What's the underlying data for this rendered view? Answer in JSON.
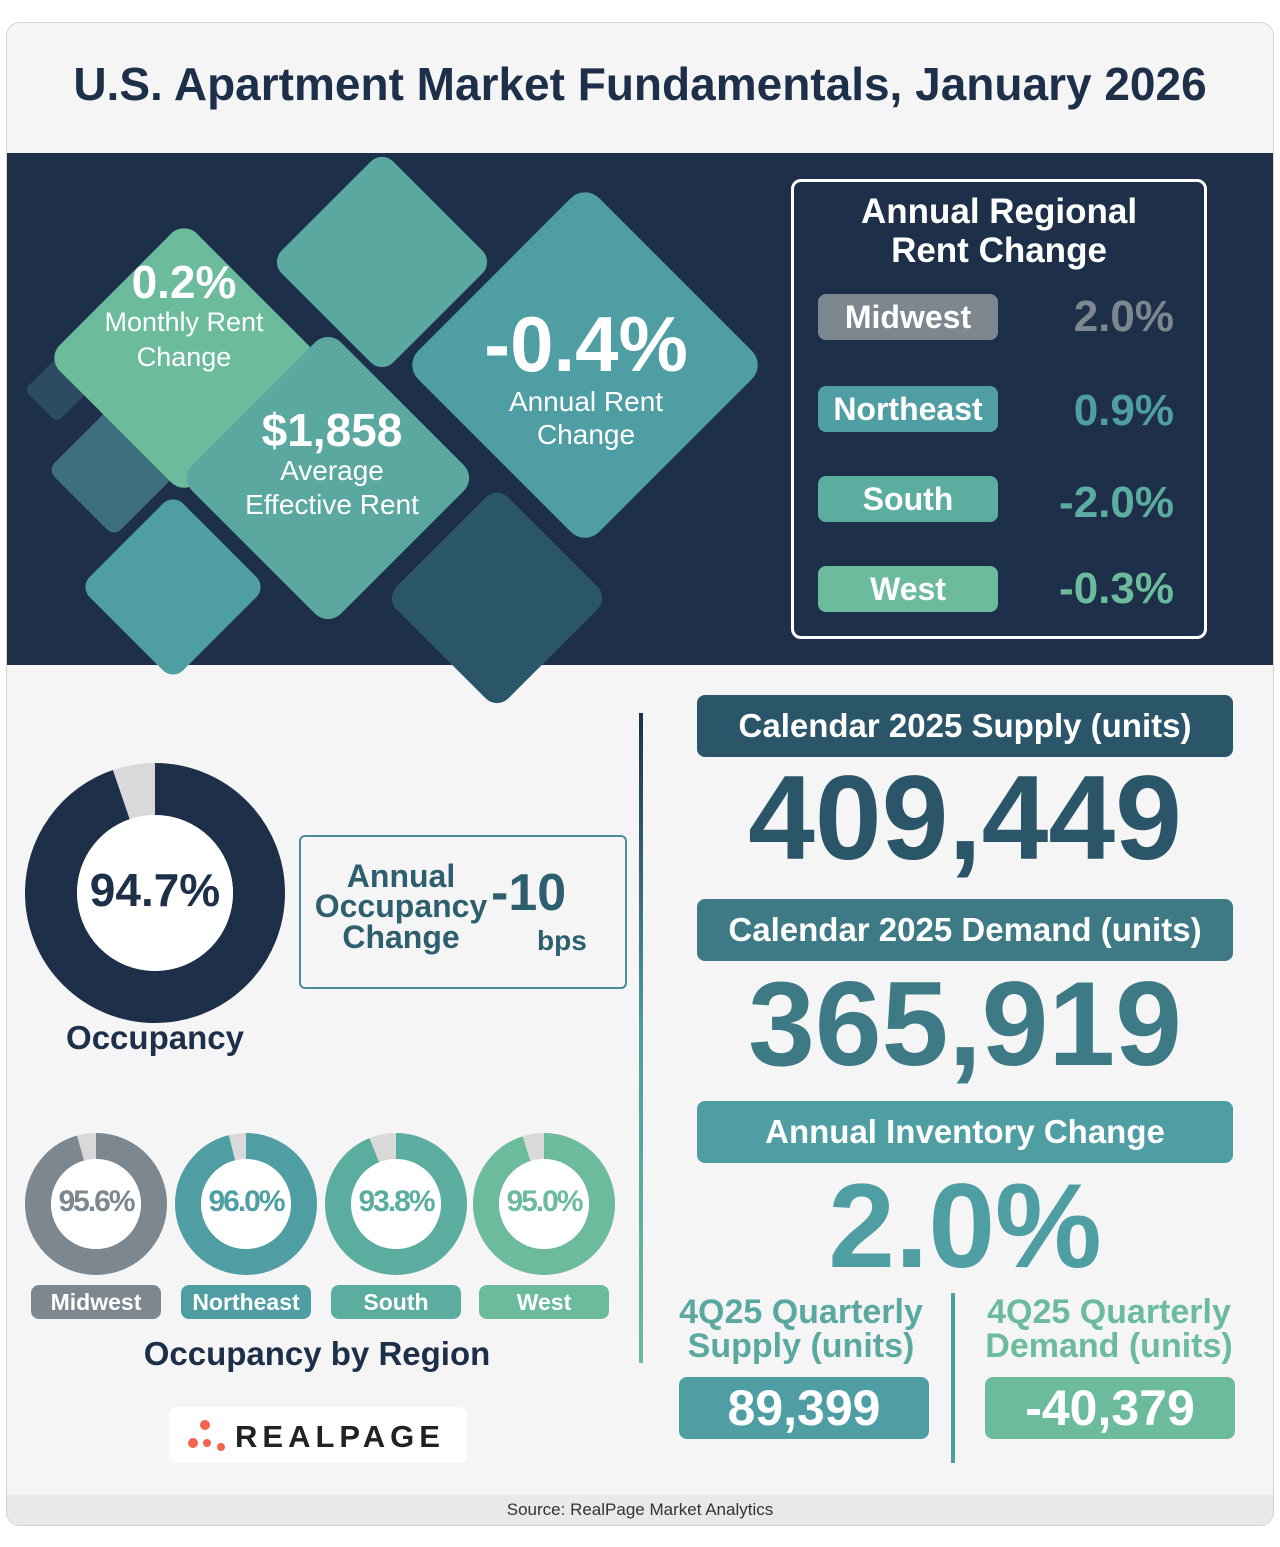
{
  "title": "U.S. Apartment Market Fundamentals, January 2026",
  "colors": {
    "navy": "#1e3049",
    "midwest": "#7d8790",
    "northeast": "#4e9ea3",
    "south": "#5bada0",
    "west": "#6bbb9c",
    "donut_gap": "#d9d9d9"
  },
  "top_metrics": {
    "monthly_rent_change": {
      "value": "0.2%",
      "label_line1": "Monthly Rent",
      "label_line2": "Change"
    },
    "average_effective_rent": {
      "value": "$1,858",
      "label_line1": "Average",
      "label_line2": "Effective Rent"
    },
    "annual_rent_change": {
      "value": "-0.4%",
      "label_line1": "Annual Rent",
      "label_line2": "Change"
    }
  },
  "regional_rent": {
    "title_line1": "Annual Regional",
    "title_line2": "Rent Change",
    "rows": [
      {
        "region": "Midwest",
        "value": "2.0%"
      },
      {
        "region": "Northeast",
        "value": "0.9%"
      },
      {
        "region": "South",
        "value": "-2.0%"
      },
      {
        "region": "West",
        "value": "-0.3%"
      }
    ]
  },
  "occupancy": {
    "value": "94.7%",
    "fraction": 0.947,
    "label": "Occupancy",
    "annual_change_label": [
      "Annual",
      "Occupancy",
      "Change"
    ],
    "annual_change_value": "-10",
    "annual_change_unit": "bps"
  },
  "occupancy_by_region": {
    "label": "Occupancy by Region",
    "regions": [
      {
        "name": "Midwest",
        "value": "95.6%",
        "fraction": 0.956
      },
      {
        "name": "Northeast",
        "value": "96.0%",
        "fraction": 0.96
      },
      {
        "name": "South",
        "value": "93.8%",
        "fraction": 0.938
      },
      {
        "name": "West",
        "value": "95.0%",
        "fraction": 0.95
      }
    ]
  },
  "supply": {
    "label": "Calendar 2025 Supply (units)",
    "value": "409,449"
  },
  "demand": {
    "label": "Calendar 2025 Demand (units)",
    "value": "365,919"
  },
  "inventory": {
    "label": "Annual Inventory Change",
    "value": "2.0%"
  },
  "quarterly": {
    "supply_label_line1": "4Q25 Quarterly",
    "supply_label_line2": "Supply (units)",
    "supply_value": "89,399",
    "demand_label_line1": "4Q25 Quarterly",
    "demand_label_line2": "Demand (units)",
    "demand_value": "-40,379"
  },
  "logo_text": "REALPAGE",
  "source": "Source: RealPage Market Analytics"
}
